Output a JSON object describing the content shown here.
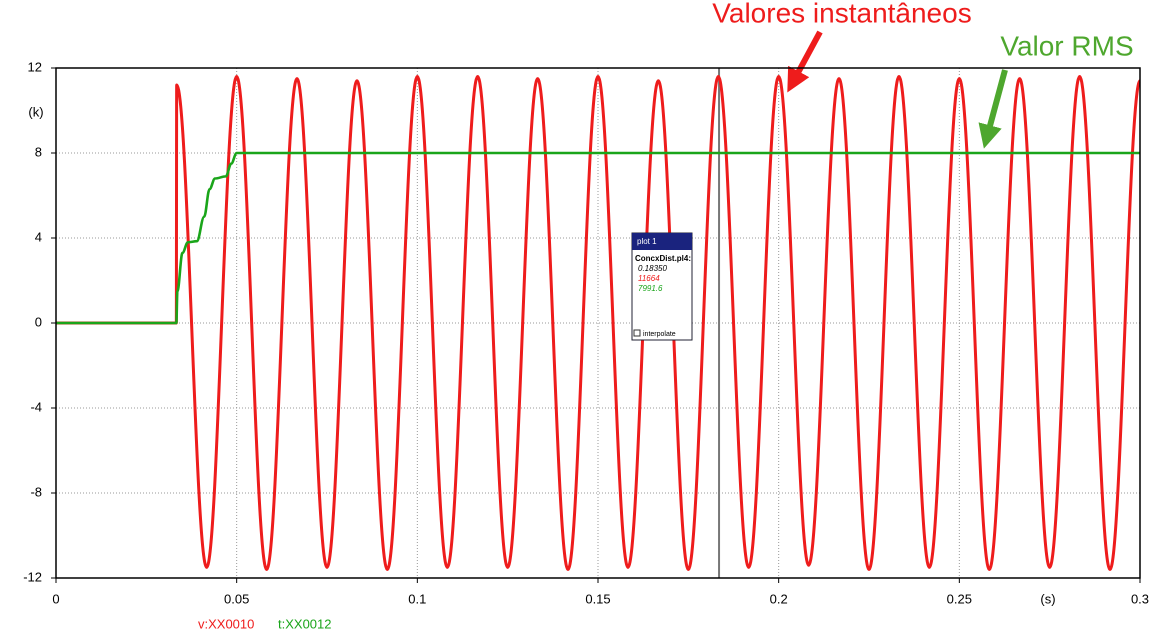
{
  "chart_data": {
    "type": "line",
    "xlim": [
      0,
      0.3
    ],
    "xticks": [
      0,
      0.05,
      0.1,
      0.15,
      0.2,
      0.25,
      0.3
    ],
    "ylim": [
      -12,
      12
    ],
    "yticks": [
      -12,
      -8,
      -4,
      0,
      4,
      8,
      12
    ],
    "y_unit": "(k)",
    "x_unit": "(s)",
    "grid": true,
    "series": [
      {
        "name": "v:XX0010",
        "color": "#ee1c1c",
        "x": [
          0,
          0.0333,
          0.0334,
          0.0417,
          0.05,
          0.0583,
          0.0667,
          0.075,
          0.0833,
          0.0917,
          0.1,
          0.1083,
          0.1167,
          0.125,
          0.1333,
          0.1417,
          0.15,
          0.1583,
          0.1667,
          0.175,
          0.1833,
          0.1917,
          0.2,
          0.2083,
          0.2167,
          0.225,
          0.2333,
          0.2417,
          0.25,
          0.2583,
          0.2667,
          0.275,
          0.2833,
          0.2917,
          0.3
        ],
        "values": [
          0,
          0,
          11.2,
          -11.5,
          11.6,
          -11.6,
          11.5,
          -11.5,
          11.4,
          -11.6,
          11.6,
          -11.5,
          11.6,
          -11.5,
          11.5,
          -11.6,
          11.6,
          -11.5,
          11.4,
          -11.6,
          11.6,
          -11.5,
          11.6,
          -11.4,
          11.5,
          -11.6,
          11.6,
          -11.5,
          11.5,
          -11.6,
          11.5,
          -11.5,
          11.6,
          -11.6,
          11.4
        ]
      },
      {
        "name": "t:XX0012",
        "color": "#1aa51a",
        "x": [
          0,
          0.0333,
          0.0336,
          0.035,
          0.0365,
          0.039,
          0.041,
          0.0425,
          0.044,
          0.047,
          0.0485,
          0.05,
          0.3
        ],
        "values": [
          0,
          0,
          1.5,
          3.3,
          3.8,
          3.85,
          5,
          6.3,
          6.8,
          6.9,
          7.5,
          8,
          8
        ]
      }
    ],
    "cursor": {
      "title": "plot 1",
      "file": "ConcxDist.pl4:",
      "x": {
        "value": 0.1835,
        "label": "0.18350"
      },
      "readouts": [
        11664,
        7991.6
      ],
      "checkbox": "interpolate"
    },
    "annotations": [
      {
        "text": "Valores instantâneos",
        "color": "#ee1c1c"
      },
      {
        "text": "Valor RMS",
        "color": "#4ea72e"
      }
    ]
  }
}
